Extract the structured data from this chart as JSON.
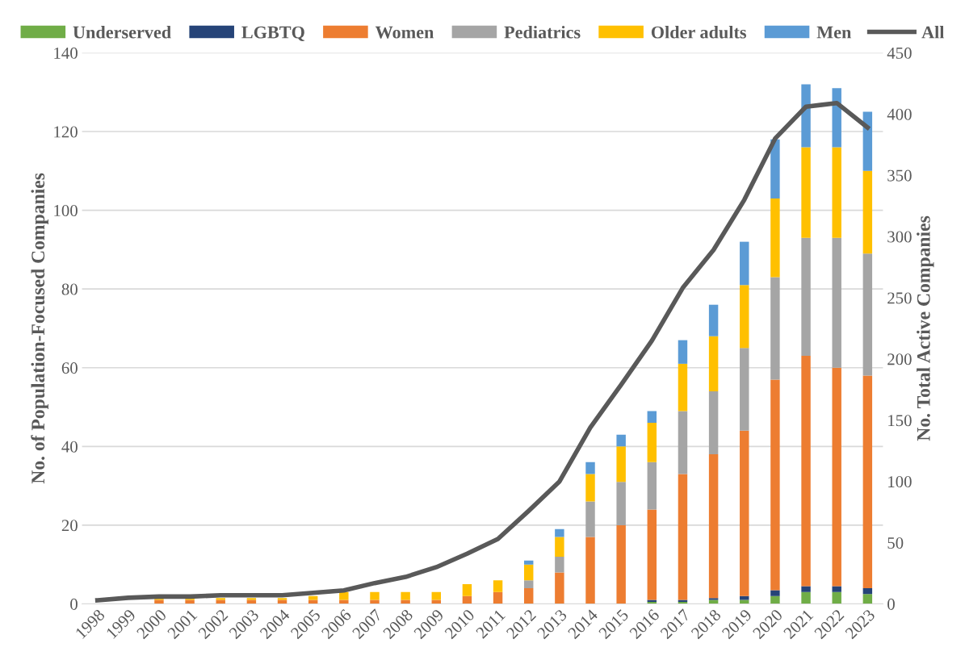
{
  "chart_data": {
    "type": "bar",
    "stacked": true,
    "ylabel": "No. of Population-Focused Companies",
    "y2label": "No. Total Active Companies",
    "categories": [
      "1998",
      "1999",
      "2000",
      "2001",
      "2002",
      "2003",
      "2004",
      "2005",
      "2006",
      "2007",
      "2008",
      "2009",
      "2010",
      "2011",
      "2012",
      "2013",
      "2014",
      "2015",
      "2016",
      "2017",
      "2018",
      "2019",
      "2020",
      "2021",
      "2022",
      "2023"
    ],
    "series": [
      {
        "name": "Underserved",
        "color": "#70ad47",
        "values": [
          0,
          0,
          0,
          0,
          0,
          0,
          0,
          0,
          0,
          0,
          0,
          0,
          0,
          0,
          0,
          0,
          0,
          0,
          0.5,
          0.5,
          1,
          1,
          2,
          3,
          3,
          2.5
        ]
      },
      {
        "name": "LGBTQ",
        "color": "#264478",
        "values": [
          0,
          0,
          0,
          0,
          0,
          0,
          0,
          0,
          0,
          0,
          0,
          0,
          0,
          0,
          0,
          0,
          0,
          0,
          0.5,
          0.5,
          0.5,
          1,
          1.5,
          1.5,
          1.5,
          1.5
        ]
      },
      {
        "name": "Women",
        "color": "#ed7d31",
        "values": [
          0,
          0,
          1,
          1,
          1,
          1,
          1,
          1,
          1,
          1,
          1,
          1,
          2,
          3,
          4,
          8,
          17,
          20,
          23,
          32,
          36.5,
          42,
          53.5,
          58.5,
          55.5,
          54
        ]
      },
      {
        "name": "Pediatrics",
        "color": "#a5a5a5",
        "values": [
          0,
          0,
          0,
          0,
          0,
          0,
          0,
          0,
          0,
          0,
          0,
          0,
          0,
          0,
          2,
          4,
          9,
          11,
          12,
          16,
          16,
          21,
          26,
          30,
          33,
          31
        ]
      },
      {
        "name": "Older adults",
        "color": "#ffc000",
        "values": [
          0,
          0,
          0.5,
          0.5,
          0.5,
          0.5,
          0.5,
          1,
          2,
          2,
          2,
          2,
          3,
          3,
          4,
          5,
          7,
          9,
          10,
          12,
          14,
          16,
          20,
          23,
          23,
          21
        ]
      },
      {
        "name": "Men",
        "color": "#5b9bd5",
        "values": [
          0,
          0,
          0,
          0,
          0,
          0,
          0,
          0,
          0,
          0,
          0,
          0,
          0,
          0,
          1,
          2,
          3,
          3,
          3,
          6,
          8,
          11,
          15,
          16,
          15,
          15
        ]
      },
      {
        "name": "All",
        "type": "line",
        "axis": "y2",
        "color": "#595959",
        "values": [
          3,
          5,
          6,
          6,
          7,
          7,
          7,
          9,
          11,
          17,
          22,
          30,
          41,
          53,
          76,
          100,
          144,
          179,
          215,
          258,
          289,
          330,
          380,
          406,
          409,
          389
        ]
      }
    ],
    "ylim": [
      0,
      140
    ],
    "yticks": [
      0,
      20,
      40,
      60,
      80,
      100,
      120,
      140
    ],
    "y2lim": [
      0,
      450
    ],
    "y2ticks": [
      0,
      50,
      100,
      150,
      200,
      250,
      300,
      350,
      400,
      450
    ],
    "grid": "y",
    "legend": "top",
    "line_style": "solid",
    "marker": "none"
  }
}
